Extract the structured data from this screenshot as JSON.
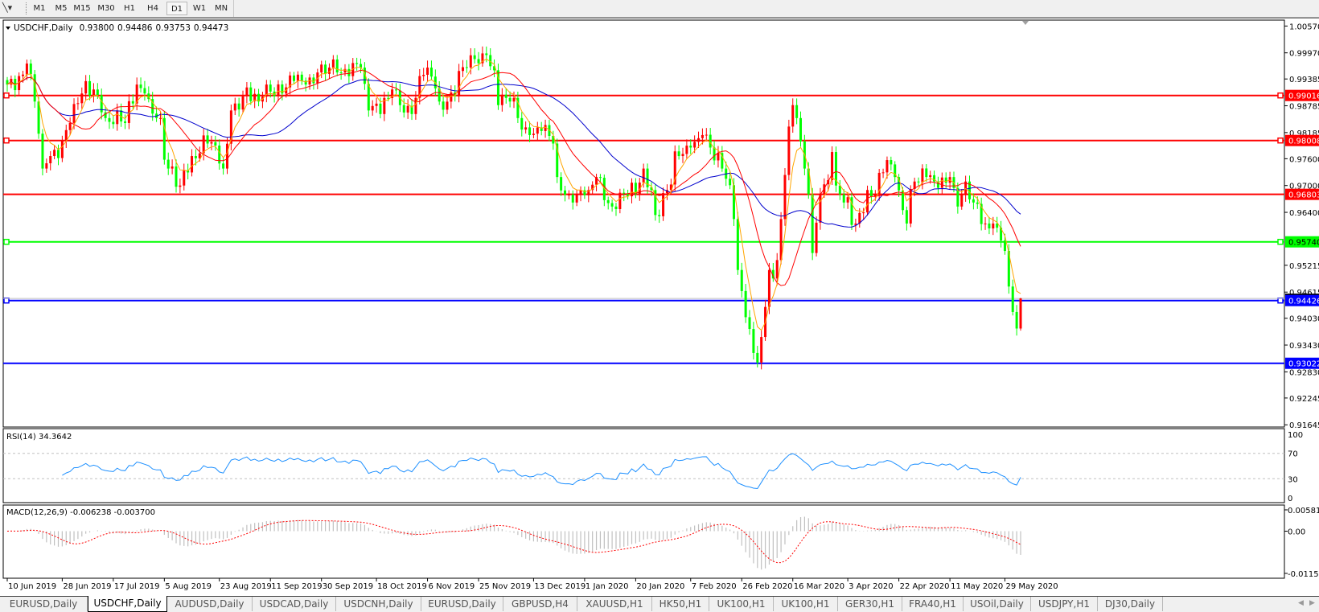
{
  "toolbar": {
    "tool_icon": "line-tool-icon",
    "timeframes": [
      "M1",
      "M5",
      "M15",
      "M30",
      "H1",
      "H4",
      "D1",
      "W1",
      "MN"
    ],
    "active_timeframe": "D1"
  },
  "chart": {
    "symbol": "USDCHF,Daily",
    "open": "0.93800",
    "high": "0.94486",
    "low": "0.93753",
    "close": "0.94473",
    "colors": {
      "bull_candle": "#ff0000",
      "bear_candle": "#00ff00",
      "ma_fast": "#ffa500",
      "ma_mid": "#ff0000",
      "ma_slow": "#0000cd",
      "bid_line": "#c0c0c0"
    },
    "price_ticks": [
      "1.00570",
      "0.99970",
      "0.99385",
      "0.98785",
      "0.98185",
      "0.97600",
      "0.97000",
      "0.96400",
      "0.95215",
      "0.94615",
      "0.94030",
      "0.93430",
      "0.92830",
      "0.92245",
      "0.91645"
    ],
    "levels": [
      {
        "price": "0.99016",
        "color": "#ff0000",
        "markers": true
      },
      {
        "price": "0.98008",
        "color": "#ff0000",
        "markers": true
      },
      {
        "price": "0.96803",
        "color": "#ff0000",
        "markers": false
      },
      {
        "price": "0.95740",
        "color": "#00ff00",
        "markers": true
      },
      {
        "price": "0.94426",
        "color": "#0000ff",
        "markers": true
      },
      {
        "price": "0.93022",
        "color": "#0000ff",
        "markers": false
      }
    ]
  },
  "rsi": {
    "label": "RSI(14) 34.3642",
    "ticks": [
      "100",
      "70",
      "30",
      "0"
    ],
    "levels": [
      70,
      30
    ],
    "color": "#1e90ff"
  },
  "macd": {
    "label": "MACD(12,26,9) -0.006238 -0.003700",
    "ticks": [
      "0.005818",
      "0.00",
      "-0.011514"
    ],
    "histogram_color": "#c0c0c0",
    "signal_color": "#ff0000"
  },
  "date_labels": [
    "10 Jun 2019",
    "28 Jun 2019",
    "17 Jul 2019",
    "5 Aug 2019",
    "23 Aug 2019",
    "11 Sep 2019",
    "30 Sep 2019",
    "18 Oct 2019",
    "6 Nov 2019",
    "25 Nov 2019",
    "13 Dec 2019",
    "1 Jan 2020",
    "20 Jan 2020",
    "7 Feb 2020",
    "26 Feb 2020",
    "16 Mar 2020",
    "3 Apr 2020",
    "22 Apr 2020",
    "11 May 2020",
    "29 May 2020"
  ],
  "tabs": [
    {
      "label": "EURUSD,Daily",
      "active": false
    },
    {
      "label": "USDCHF,Daily",
      "active": true
    },
    {
      "label": "AUDUSD,Daily",
      "active": false
    },
    {
      "label": "USDCAD,Daily",
      "active": false
    },
    {
      "label": "USDCNH,Daily",
      "active": false
    },
    {
      "label": "EURUSD,Daily",
      "active": false
    },
    {
      "label": "GBPUSD,H4",
      "active": false
    },
    {
      "label": "XAUUSD,H1",
      "active": false
    },
    {
      "label": "HK50,H1",
      "active": false
    },
    {
      "label": "UK100,H1",
      "active": false
    },
    {
      "label": "UK100,H1",
      "active": false
    },
    {
      "label": "GER30,H1",
      "active": false
    },
    {
      "label": "FRA40,H1",
      "active": false
    },
    {
      "label": "USOil,Daily",
      "active": false
    },
    {
      "label": "USDJPY,H1",
      "active": false
    },
    {
      "label": "DJ30,Daily",
      "active": false
    }
  ],
  "chart_data": {
    "type": "candlestick",
    "symbol": "USDCHF",
    "timeframe": "Daily",
    "ylim": [
      0.91595,
      1.00703
    ],
    "last_bar": {
      "open": 0.938,
      "high": 0.94486,
      "low": 0.93753,
      "close": 0.94473
    },
    "approx_closes": [
      [
        "2019-06-10",
        0.9926
      ],
      [
        "2019-06-13",
        0.9945
      ],
      [
        "2019-06-17",
        0.9973
      ],
      [
        "2019-06-19",
        0.9888
      ],
      [
        "2019-06-21",
        0.9738
      ],
      [
        "2019-06-25",
        0.9766
      ],
      [
        "2019-07-02",
        0.984
      ],
      [
        "2019-07-05",
        0.9906
      ],
      [
        "2019-07-10",
        0.9915
      ],
      [
        "2019-07-15",
        0.9851
      ],
      [
        "2019-07-22",
        0.984
      ],
      [
        "2019-07-25",
        0.9926
      ],
      [
        "2019-07-29",
        0.9906
      ],
      [
        "2019-08-01",
        0.9851
      ],
      [
        "2019-08-06",
        0.9738
      ],
      [
        "2019-08-09",
        0.97
      ],
      [
        "2019-08-14",
        0.9766
      ],
      [
        "2019-08-20",
        0.9794
      ],
      [
        "2019-08-26",
        0.9738
      ],
      [
        "2019-08-28",
        0.9868
      ],
      [
        "2019-09-02",
        0.99
      ],
      [
        "2019-09-06",
        0.9888
      ],
      [
        "2019-09-10",
        0.9926
      ],
      [
        "2019-09-16",
        0.9906
      ],
      [
        "2019-09-19",
        0.9934
      ],
      [
        "2019-09-24",
        0.9926
      ],
      [
        "2019-09-27",
        0.9953
      ],
      [
        "2019-10-02",
        0.9964
      ],
      [
        "2019-10-07",
        0.9953
      ],
      [
        "2019-10-11",
        0.9972
      ],
      [
        "2019-10-14",
        0.9964
      ],
      [
        "2019-10-16",
        0.9868
      ],
      [
        "2019-10-21",
        0.986
      ],
      [
        "2019-10-24",
        0.9915
      ],
      [
        "2019-10-28",
        0.988
      ],
      [
        "2019-10-31",
        0.986
      ],
      [
        "2019-11-04",
        0.9945
      ],
      [
        "2019-11-06",
        0.9964
      ],
      [
        "2019-11-11",
        0.9888
      ],
      [
        "2019-11-15",
        0.99
      ],
      [
        "2019-11-20",
        0.9964
      ],
      [
        "2019-11-22",
        0.9983
      ],
      [
        "2019-11-27",
        0.9992
      ],
      [
        "2019-12-02",
        0.988
      ],
      [
        "2019-12-05",
        0.9888
      ],
      [
        "2019-12-09",
        0.9851
      ],
      [
        "2019-12-12",
        0.9813
      ],
      [
        "2019-12-17",
        0.9822
      ],
      [
        "2019-12-20",
        0.9794
      ],
      [
        "2019-12-23",
        0.9719
      ],
      [
        "2019-12-27",
        0.9662
      ],
      [
        "2020-01-02",
        0.969
      ],
      [
        "2020-01-06",
        0.9719
      ],
      [
        "2020-01-10",
        0.9653
      ],
      [
        "2020-01-15",
        0.9681
      ],
      [
        "2020-01-20",
        0.9681
      ],
      [
        "2020-01-22",
        0.9738
      ],
      [
        "2020-01-27",
        0.9634
      ],
      [
        "2020-01-30",
        0.969
      ],
      [
        "2020-02-04",
        0.9766
      ],
      [
        "2020-02-07",
        0.9785
      ],
      [
        "2020-02-12",
        0.9813
      ],
      [
        "2020-02-14",
        0.9785
      ],
      [
        "2020-02-19",
        0.9738
      ],
      [
        "2020-02-24",
        0.9625
      ],
      [
        "2020-02-25",
        0.9511
      ],
      [
        "2020-02-28",
        0.9379
      ],
      [
        "2020-03-03",
        0.9304
      ],
      [
        "2020-03-04",
        0.9361
      ],
      [
        "2020-03-06",
        0.9511
      ],
      [
        "2020-03-09",
        0.9492
      ],
      [
        "2020-03-11",
        0.9625
      ],
      [
        "2020-03-13",
        0.9832
      ],
      [
        "2020-03-16",
        0.988
      ],
      [
        "2020-03-17",
        0.9851
      ],
      [
        "2020-03-19",
        0.9738
      ],
      [
        "2020-03-23",
        0.9549
      ],
      [
        "2020-03-25",
        0.9681
      ],
      [
        "2020-03-30",
        0.9775
      ],
      [
        "2020-03-31",
        0.97
      ],
      [
        "2020-04-02",
        0.9662
      ],
      [
        "2020-04-07",
        0.9615
      ],
      [
        "2020-04-10",
        0.969
      ],
      [
        "2020-04-14",
        0.9681
      ],
      [
        "2020-04-17",
        0.9757
      ],
      [
        "2020-04-21",
        0.9719
      ],
      [
        "2020-04-24",
        0.9615
      ],
      [
        "2020-04-28",
        0.9709
      ],
      [
        "2020-05-01",
        0.9719
      ],
      [
        "2020-05-05",
        0.9709
      ],
      [
        "2020-05-11",
        0.9719
      ],
      [
        "2020-05-13",
        0.9653
      ],
      [
        "2020-05-15",
        0.9709
      ],
      [
        "2020-05-19",
        0.9662
      ],
      [
        "2020-05-22",
        0.9615
      ],
      [
        "2020-05-26",
        0.9615
      ],
      [
        "2020-05-28",
        0.9577
      ],
      [
        "2020-06-01",
        0.9474
      ],
      [
        "2020-06-02",
        0.9417
      ],
      [
        "2020-06-03",
        0.938
      ],
      [
        "2020-06-04",
        0.94473
      ]
    ]
  }
}
